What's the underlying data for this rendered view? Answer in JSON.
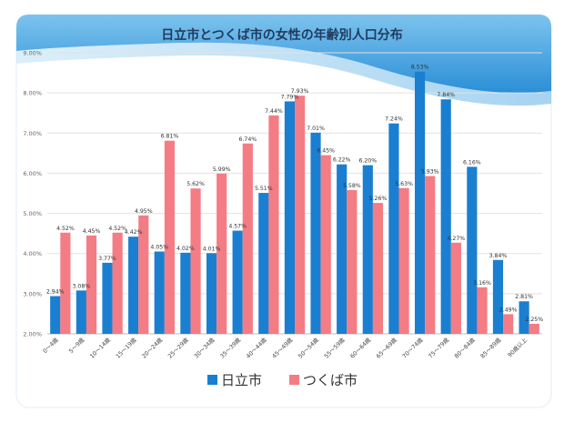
{
  "chart_data": {
    "type": "bar",
    "title": "日立市とつくば市の女性の年齢別人口分布",
    "categories": [
      "0～4歳",
      "5～9歳",
      "10～14歳",
      "15～19歳",
      "20～24歳",
      "25～29歳",
      "30～34歳",
      "35～39歳",
      "40～44歳",
      "45～49歳",
      "50～54歳",
      "55～59歳",
      "60～64歳",
      "65～69歳",
      "70～74歳",
      "75～79歳",
      "80～84歳",
      "85～89歳",
      "90歳以上"
    ],
    "series": [
      {
        "name": "日立市",
        "color": "#1a7fd1",
        "values": [
          2.94,
          3.08,
          3.77,
          4.42,
          4.05,
          4.02,
          4.01,
          4.57,
          5.51,
          7.79,
          7.01,
          6.22,
          6.2,
          7.24,
          8.53,
          7.84,
          6.16,
          3.84,
          2.81
        ],
        "labels": [
          "2.94%",
          "3.08%",
          "3.77%",
          "4.42%",
          "4.05%",
          "4.02%",
          "4.01%",
          "4.57%",
          "5.51%",
          "7.79%",
          "7.01%",
          "6.22%",
          "6.20%",
          "7.24%",
          "8.53%",
          "7.84%",
          "6.16%",
          "3.84%",
          "2.81%"
        ]
      },
      {
        "name": "つくば市",
        "color": "#f47c84",
        "values": [
          4.52,
          4.45,
          4.52,
          4.95,
          6.81,
          5.62,
          5.99,
          6.74,
          7.44,
          7.93,
          6.45,
          5.58,
          5.26,
          5.63,
          5.93,
          4.27,
          3.16,
          2.49,
          2.25
        ],
        "labels": [
          "4.52%",
          "4.45%",
          "4.52%",
          "4.95%",
          "6.81%",
          "5.62%",
          "5.99%",
          "6.74%",
          "7.44%",
          "7.93%",
          "6.45%",
          "5.58%",
          "5.26%",
          "5.63%",
          "5.93%",
          "4.27%",
          "3.16%",
          "2.49%",
          "2.25%"
        ]
      }
    ],
    "ylim": [
      2.0,
      9.0
    ],
    "yticks": [
      "2.00%",
      "3.00%",
      "4.00%",
      "5.00%",
      "6.00%",
      "7.00%",
      "8.00%",
      "9.00%"
    ],
    "grid": true,
    "legend": "bottom-center"
  }
}
